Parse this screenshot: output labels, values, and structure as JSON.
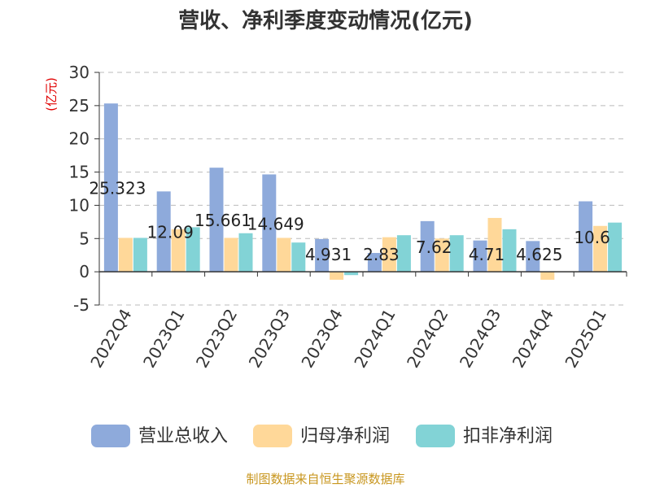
{
  "chart_data": {
    "type": "bar",
    "title": "营收、净利季度变动情况(亿元)",
    "ylabel": "(亿元)",
    "ylim": [
      -5,
      30
    ],
    "yticks": [
      30,
      25,
      20,
      15,
      10,
      5,
      0,
      -5
    ],
    "grid": true,
    "legend_position": "bottom",
    "categories": [
      "2022Q4",
      "2023Q1",
      "2023Q2",
      "2023Q3",
      "2023Q4",
      "2024Q1",
      "2024Q2",
      "2024Q3",
      "2024Q4",
      "2025Q1"
    ],
    "series": [
      {
        "name": "营业总收入",
        "color": "#8eaadb",
        "values": [
          25.323,
          12.09,
          15.661,
          14.649,
          4.931,
          2.83,
          7.62,
          4.71,
          4.625,
          10.6
        ]
      },
      {
        "name": "归母净利润",
        "color": "#ffd899",
        "values": [
          5.1,
          6.4,
          5.1,
          5.1,
          -1.2,
          5.2,
          5.0,
          8.1,
          -1.2,
          6.9
        ]
      },
      {
        "name": "扣非净利润",
        "color": "#82d3d6",
        "values": [
          5.1,
          6.7,
          5.8,
          4.4,
          -0.5,
          5.5,
          5.5,
          6.4,
          0,
          7.4
        ]
      }
    ],
    "data_labels": [
      "25.323",
      "12.09",
      "15.661",
      "14.649",
      "4.931",
      "2.83",
      "7.62",
      "4.71",
      "4.625",
      "10.6"
    ]
  },
  "source": "制图数据来自恒生聚源数据库"
}
